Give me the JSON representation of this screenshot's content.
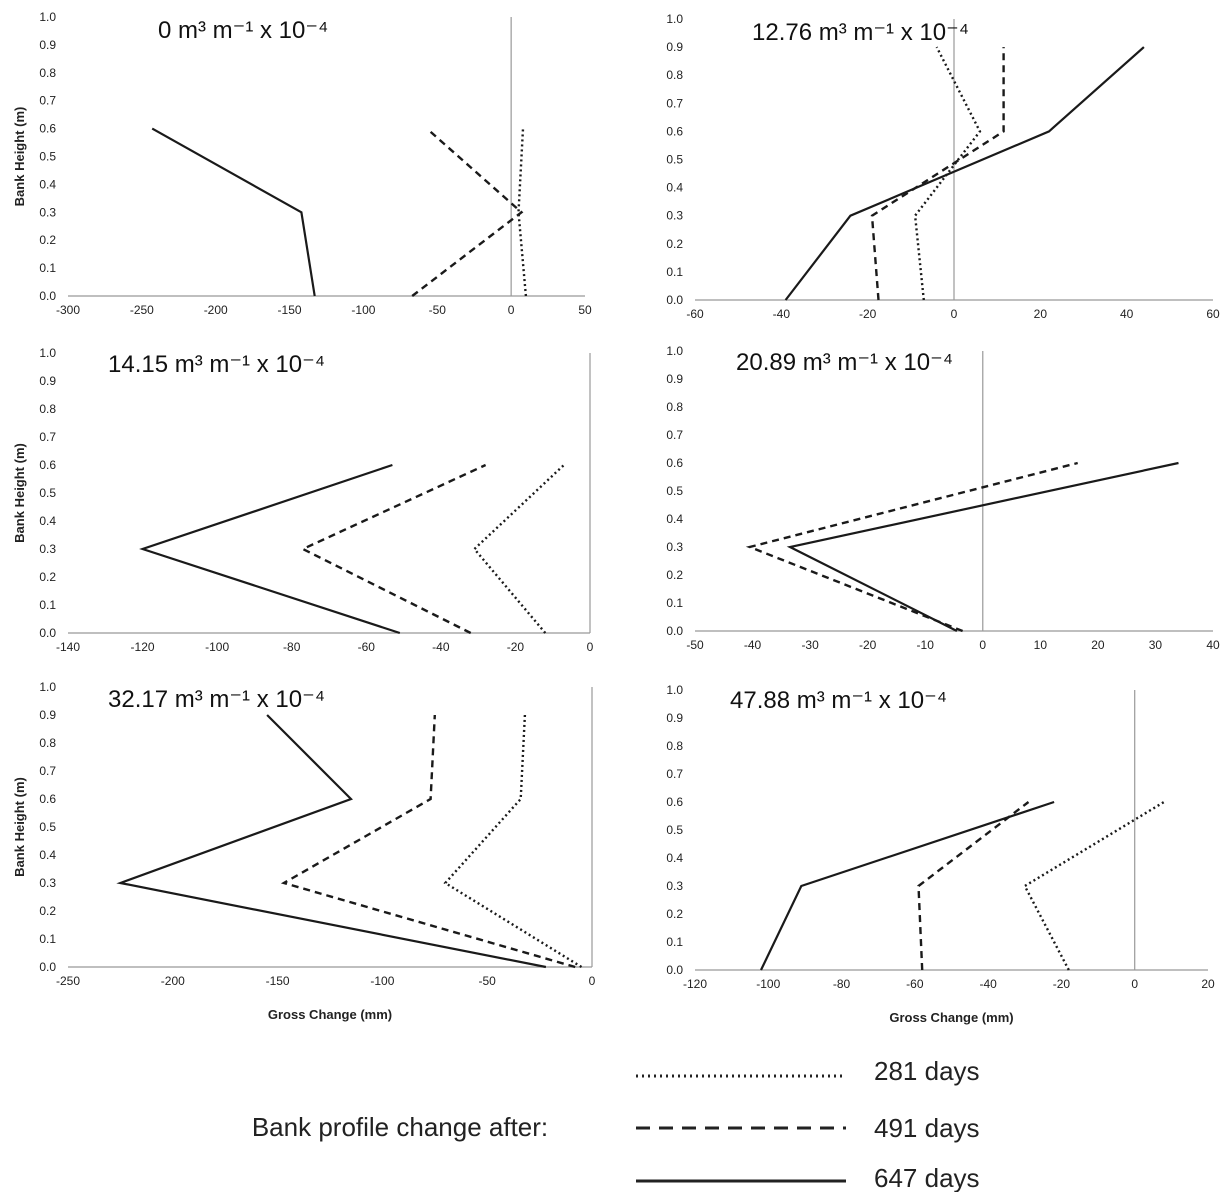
{
  "legend": {
    "prefix": "Bank profile change after:",
    "entries": [
      {
        "label": "281 days",
        "style": "dotted"
      },
      {
        "label": "491 days",
        "style": "dashed"
      },
      {
        "label": "647 days",
        "style": "solid"
      }
    ]
  },
  "chart_data": [
    {
      "type": "line",
      "title": "0 m³ m⁻¹ x 10⁻⁴",
      "ylabel": "Bank Height (m)",
      "xlabel": "",
      "xlim": [
        -300,
        50
      ],
      "xticks": [
        -300,
        -250,
        -200,
        -150,
        -100,
        -50,
        0,
        50
      ],
      "ylim": [
        0,
        1.0
      ],
      "yticks": [
        0.0,
        0.1,
        0.2,
        0.3,
        0.4,
        0.5,
        0.6,
        0.7,
        0.8,
        0.9,
        1.0
      ],
      "series": [
        {
          "name": "281 days",
          "style": "dotted",
          "points": [
            [
              10,
              0.0
            ],
            [
              5,
              0.3
            ],
            [
              8,
              0.6
            ]
          ]
        },
        {
          "name": "491 days",
          "style": "dashed",
          "points": [
            [
              -67,
              0.0
            ],
            [
              7,
              0.3
            ],
            [
              -57,
              0.6
            ]
          ]
        },
        {
          "name": "647 days",
          "style": "solid",
          "points": [
            [
              -133,
              0.0
            ],
            [
              -142,
              0.3
            ],
            [
              -243,
              0.6
            ]
          ]
        }
      ]
    },
    {
      "type": "line",
      "title": "12.76 m³ m⁻¹ x 10⁻⁴",
      "ylabel": "",
      "xlabel": "",
      "xlim": [
        -60,
        60
      ],
      "xticks": [
        -60,
        -40,
        -20,
        0,
        20,
        40,
        60
      ],
      "ylim": [
        0,
        1.0
      ],
      "yticks": [
        0.0,
        0.1,
        0.2,
        0.3,
        0.4,
        0.5,
        0.6,
        0.7,
        0.8,
        0.9,
        1.0
      ],
      "series": [
        {
          "name": "281 days",
          "style": "dotted",
          "points": [
            [
              -7,
              0.0
            ],
            [
              -9,
              0.3
            ],
            [
              6,
              0.6
            ],
            [
              -4,
              0.9
            ]
          ]
        },
        {
          "name": "491 days",
          "style": "dashed",
          "points": [
            [
              -17.5,
              0.0
            ],
            [
              -19,
              0.3
            ],
            [
              11.5,
              0.6
            ],
            [
              11.5,
              0.9
            ]
          ]
        },
        {
          "name": "647 days",
          "style": "solid",
          "points": [
            [
              -39,
              0.0
            ],
            [
              -24,
              0.3
            ],
            [
              22,
              0.6
            ],
            [
              44,
              0.9
            ]
          ]
        }
      ]
    },
    {
      "type": "line",
      "title": "14.15 m³ m⁻¹ x 10⁻⁴",
      "ylabel": "Bank Height (m)",
      "xlabel": "",
      "xlim": [
        -140,
        0
      ],
      "xticks": [
        -140,
        -120,
        -100,
        -80,
        -60,
        -40,
        -20,
        0
      ],
      "ylim": [
        0,
        1.0
      ],
      "yticks": [
        0.0,
        0.1,
        0.2,
        0.3,
        0.4,
        0.5,
        0.6,
        0.7,
        0.8,
        0.9,
        1.0
      ],
      "series": [
        {
          "name": "281 days",
          "style": "dotted",
          "points": [
            [
              -12,
              0.0
            ],
            [
              -31,
              0.3
            ],
            [
              -7,
              0.6
            ]
          ]
        },
        {
          "name": "491 days",
          "style": "dashed",
          "points": [
            [
              -32,
              0.0
            ],
            [
              -77,
              0.3
            ],
            [
              -28,
              0.6
            ]
          ]
        },
        {
          "name": "647 days",
          "style": "solid",
          "points": [
            [
              -51,
              0.0
            ],
            [
              -120,
              0.3
            ],
            [
              -53,
              0.6
            ]
          ]
        }
      ]
    },
    {
      "type": "line",
      "title": "20.89 m³ m⁻¹ x 10⁻⁴",
      "ylabel": "",
      "xlabel": "",
      "xlim": [
        -50,
        40
      ],
      "xticks": [
        -50,
        -40,
        -30,
        -20,
        -10,
        0,
        10,
        20,
        30,
        40
      ],
      "ylim": [
        0,
        1.0
      ],
      "yticks": [
        0.0,
        0.1,
        0.2,
        0.3,
        0.4,
        0.5,
        0.6,
        0.7,
        0.8,
        0.9,
        1.0
      ],
      "series": [
        {
          "name": "491 days",
          "style": "dashed",
          "points": [
            [
              -3.5,
              0.0
            ],
            [
              -40.5,
              0.3
            ],
            [
              16.5,
              0.6
            ]
          ]
        },
        {
          "name": "647 days",
          "style": "solid",
          "points": [
            [
              -4.5,
              0.0
            ],
            [
              -33.5,
              0.3
            ],
            [
              34,
              0.6
            ]
          ]
        }
      ]
    },
    {
      "type": "line",
      "title": "32.17 m³ m⁻¹ x 10⁻⁴",
      "ylabel": "Bank Height (m)",
      "xlabel": "Gross Change (mm)",
      "xlim": [
        -250,
        0
      ],
      "xticks": [
        -250,
        -200,
        -150,
        -100,
        -50,
        0
      ],
      "ylim": [
        0,
        1.0
      ],
      "yticks": [
        0.0,
        0.1,
        0.2,
        0.3,
        0.4,
        0.5,
        0.6,
        0.7,
        0.8,
        0.9,
        1.0
      ],
      "series": [
        {
          "name": "281 days",
          "style": "dotted",
          "points": [
            [
              -5,
              0.0
            ],
            [
              -70,
              0.3
            ],
            [
              -34,
              0.6
            ],
            [
              -32,
              0.9
            ]
          ]
        },
        {
          "name": "491 days",
          "style": "dashed",
          "points": [
            [
              -8,
              0.0
            ],
            [
              -147,
              0.3
            ],
            [
              -77,
              0.6
            ],
            [
              -75,
              0.9
            ]
          ]
        },
        {
          "name": "647 days",
          "style": "solid",
          "points": [
            [
              -22,
              0.0
            ],
            [
              -225,
              0.3
            ],
            [
              -115,
              0.6
            ],
            [
              -155,
              0.9
            ]
          ]
        }
      ]
    },
    {
      "type": "line",
      "title": "47.88 m³ m⁻¹ x 10⁻⁴",
      "ylabel": "",
      "xlabel": "Gross Change (mm)",
      "xlim": [
        -120,
        20
      ],
      "xticks": [
        -120,
        -100,
        -80,
        -60,
        -40,
        -20,
        0,
        20
      ],
      "ylim": [
        0,
        1.0
      ],
      "yticks": [
        0.0,
        0.1,
        0.2,
        0.3,
        0.4,
        0.5,
        0.6,
        0.7,
        0.8,
        0.9,
        1.0
      ],
      "series": [
        {
          "name": "281 days",
          "style": "dotted",
          "points": [
            [
              -18,
              0.0
            ],
            [
              -30,
              0.3
            ],
            [
              8,
              0.6
            ]
          ]
        },
        {
          "name": "491 days",
          "style": "dashed",
          "points": [
            [
              -58,
              0.0
            ],
            [
              -59,
              0.3
            ],
            [
              -29,
              0.6
            ]
          ]
        },
        {
          "name": "647 days",
          "style": "solid",
          "points": [
            [
              -102,
              0.0
            ],
            [
              -91,
              0.3
            ],
            [
              -22,
              0.6
            ]
          ]
        }
      ]
    }
  ]
}
